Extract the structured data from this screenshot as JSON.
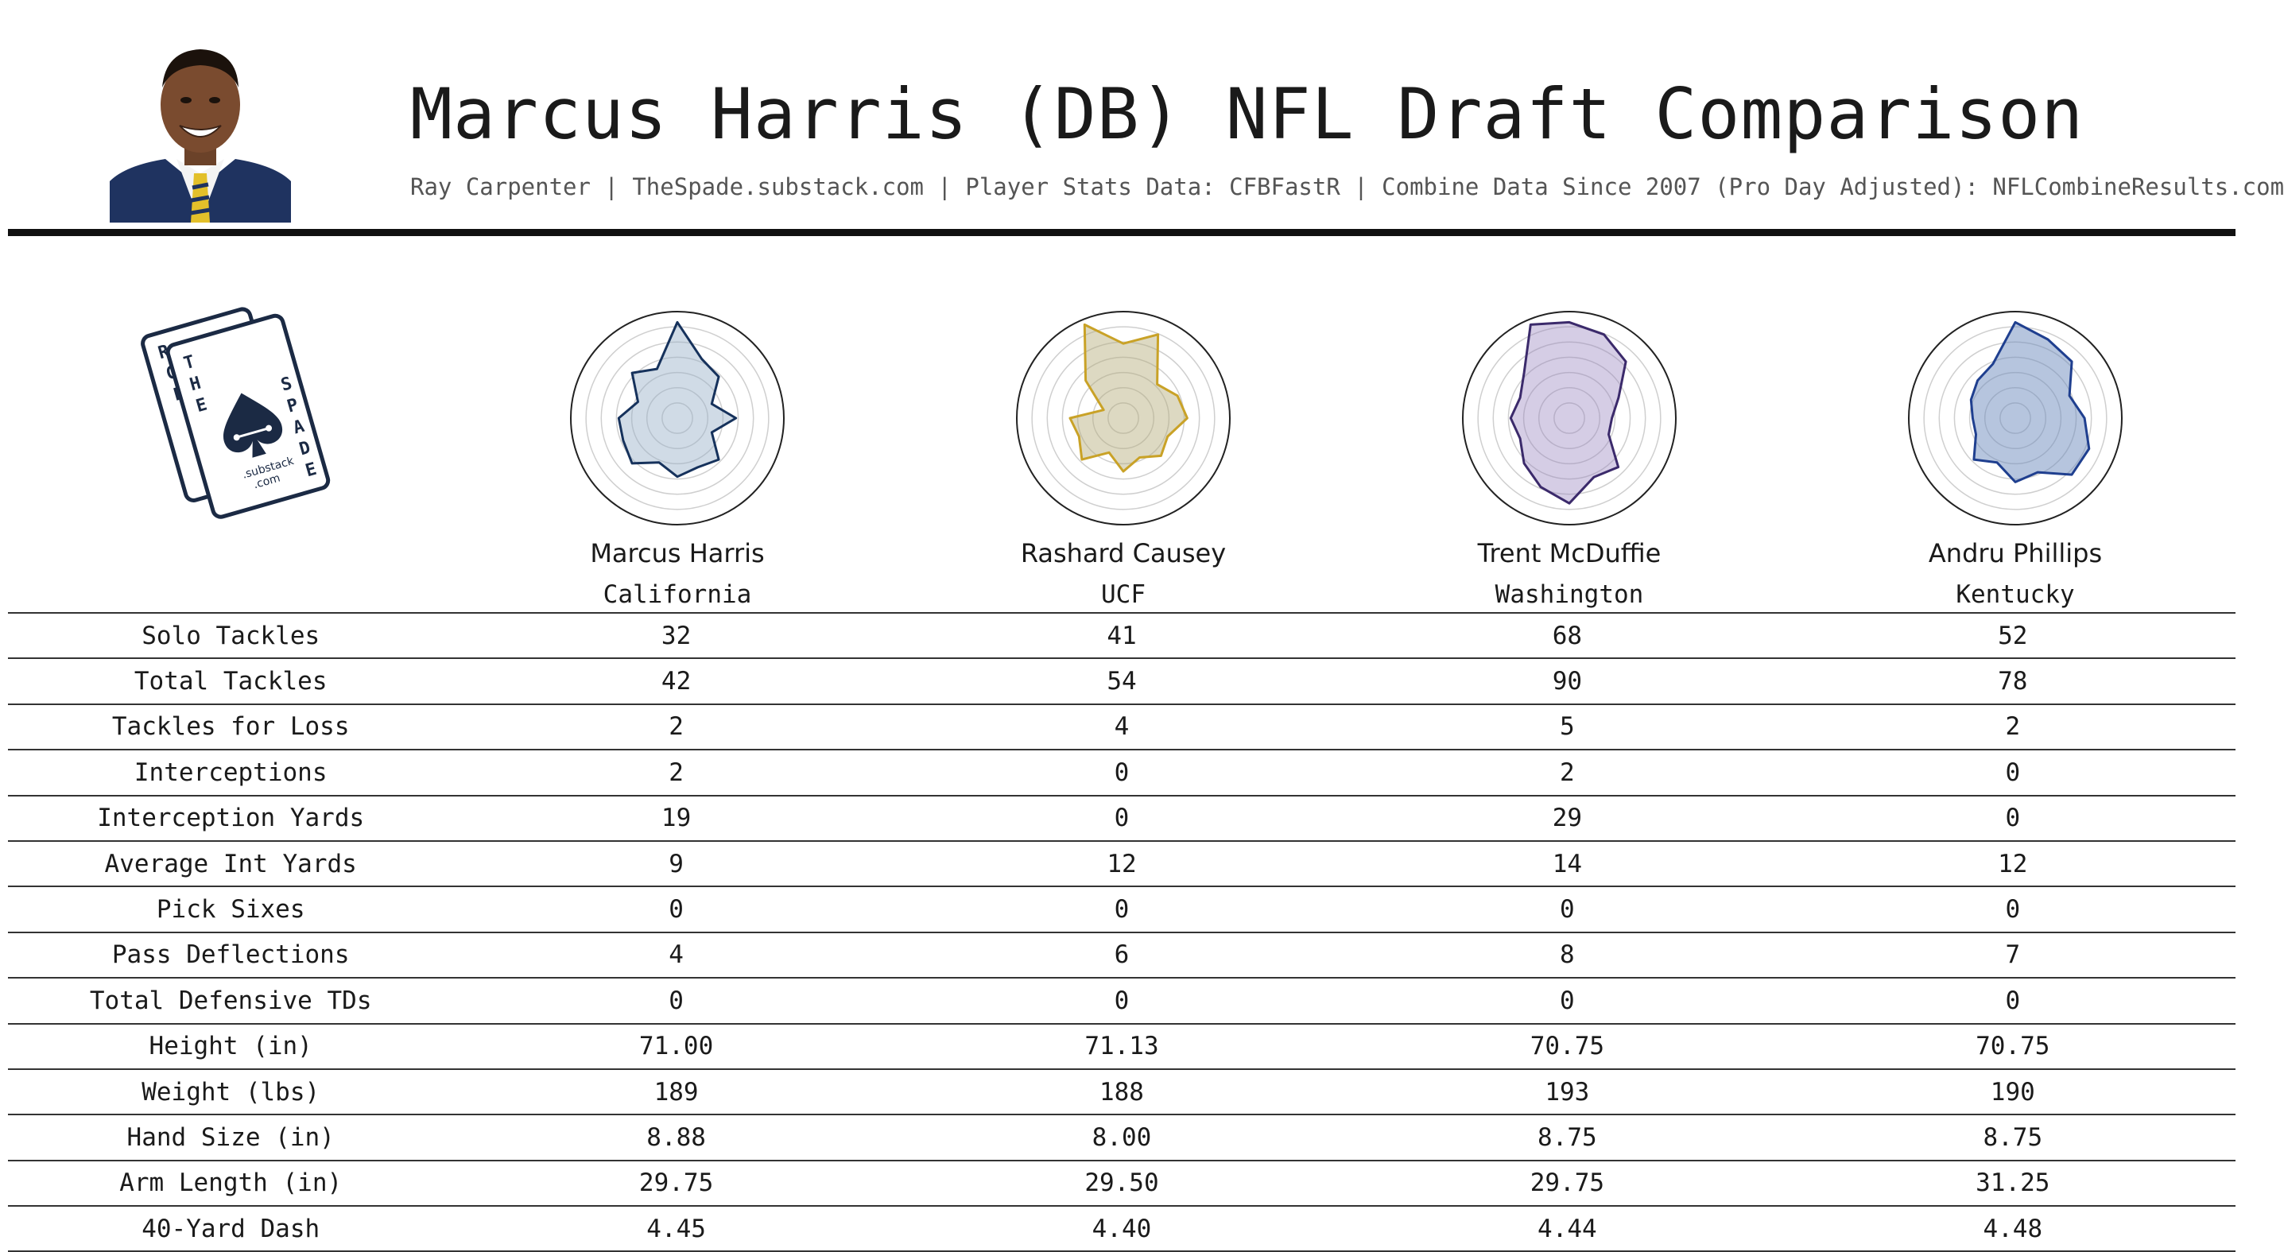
{
  "header": {
    "title": "Marcus Harris (DB) NFL Draft Comparison",
    "subtitle": "Ray Carpenter | TheSpade.substack.com | Player Stats Data: CFBFastR | Combine Data Since 2007 (Pro Day Adjusted): NFLCombineResults.com"
  },
  "logo": {
    "letters_left": "RCE",
    "letters_mid": "THE",
    "letters_right": "SPADE",
    "url_line1": ".substack",
    "url_line2": ".com"
  },
  "colors": {
    "harris": "#16325c",
    "causey": "#c9a227",
    "mcduffie": "#3b2a6b",
    "phillips": "#1f3f8f"
  },
  "chart_data": {
    "type": "radar",
    "note_axes": "one spoke per stat; values are percentile-style 0-100 read from radar shape",
    "series": [
      {
        "name": "Marcus Harris",
        "color": "#16325c",
        "fill": "rgba(150,175,200,0.45)",
        "values": [
          90,
          60,
          55,
          35,
          55,
          35,
          55,
          50,
          55,
          45,
          60,
          55,
          55,
          40,
          60,
          50
        ]
      },
      {
        "name": "Rashard Causey",
        "color": "#c9a227",
        "fill": "rgba(180,170,120,0.45)",
        "values": [
          70,
          85,
          45,
          55,
          60,
          45,
          50,
          40,
          50,
          35,
          55,
          45,
          50,
          20,
          50,
          95
        ]
      },
      {
        "name": "Trent McDuffie",
        "color": "#3b2a6b",
        "fill": "rgba(150,130,190,0.40)",
        "values": [
          90,
          85,
          75,
          50,
          40,
          40,
          65,
          60,
          80,
          70,
          60,
          50,
          55,
          50,
          60,
          95
        ]
      },
      {
        "name": "Andru Phillips",
        "color": "#1f3f8f",
        "fill": "rgba(110,140,190,0.50)",
        "values": [
          90,
          80,
          75,
          55,
          65,
          75,
          75,
          55,
          60,
          45,
          55,
          40,
          40,
          45,
          50,
          55
        ]
      }
    ]
  },
  "players": [
    {
      "name": "Marcus Harris",
      "school": "California"
    },
    {
      "name": "Rashard Causey",
      "school": "UCF"
    },
    {
      "name": "Trent McDuffie",
      "school": "Washington"
    },
    {
      "name": "Andru Phillips",
      "school": "Kentucky"
    }
  ],
  "stats": [
    {
      "label": "Solo Tackles",
      "values": [
        "32",
        "41",
        "68",
        "52"
      ]
    },
    {
      "label": "Total Tackles",
      "values": [
        "42",
        "54",
        "90",
        "78"
      ]
    },
    {
      "label": "Tackles for Loss",
      "values": [
        "2",
        "4",
        "5",
        "2"
      ]
    },
    {
      "label": "Interceptions",
      "values": [
        "2",
        "0",
        "2",
        "0"
      ]
    },
    {
      "label": "Interception Yards",
      "values": [
        "19",
        "0",
        "29",
        "0"
      ]
    },
    {
      "label": "Average Int Yards",
      "values": [
        "9",
        "12",
        "14",
        "12"
      ]
    },
    {
      "label": "Pick Sixes",
      "values": [
        "0",
        "0",
        "0",
        "0"
      ]
    },
    {
      "label": "Pass Deflections",
      "values": [
        "4",
        "6",
        "8",
        "7"
      ]
    },
    {
      "label": "Total Defensive TDs",
      "values": [
        "0",
        "0",
        "0",
        "0"
      ]
    },
    {
      "label": "Height (in)",
      "values": [
        "71.00",
        "71.13",
        "70.75",
        "70.75"
      ]
    },
    {
      "label": "Weight (lbs)",
      "values": [
        "189",
        "188",
        "193",
        "190"
      ]
    },
    {
      "label": "Hand Size (in)",
      "values": [
        "8.88",
        "8.00",
        "8.75",
        "8.75"
      ]
    },
    {
      "label": "Arm Length (in)",
      "values": [
        "29.75",
        "29.50",
        "29.75",
        "31.25"
      ]
    },
    {
      "label": "40-Yard Dash",
      "values": [
        "4.45",
        "4.40",
        "4.44",
        "4.48"
      ]
    }
  ]
}
